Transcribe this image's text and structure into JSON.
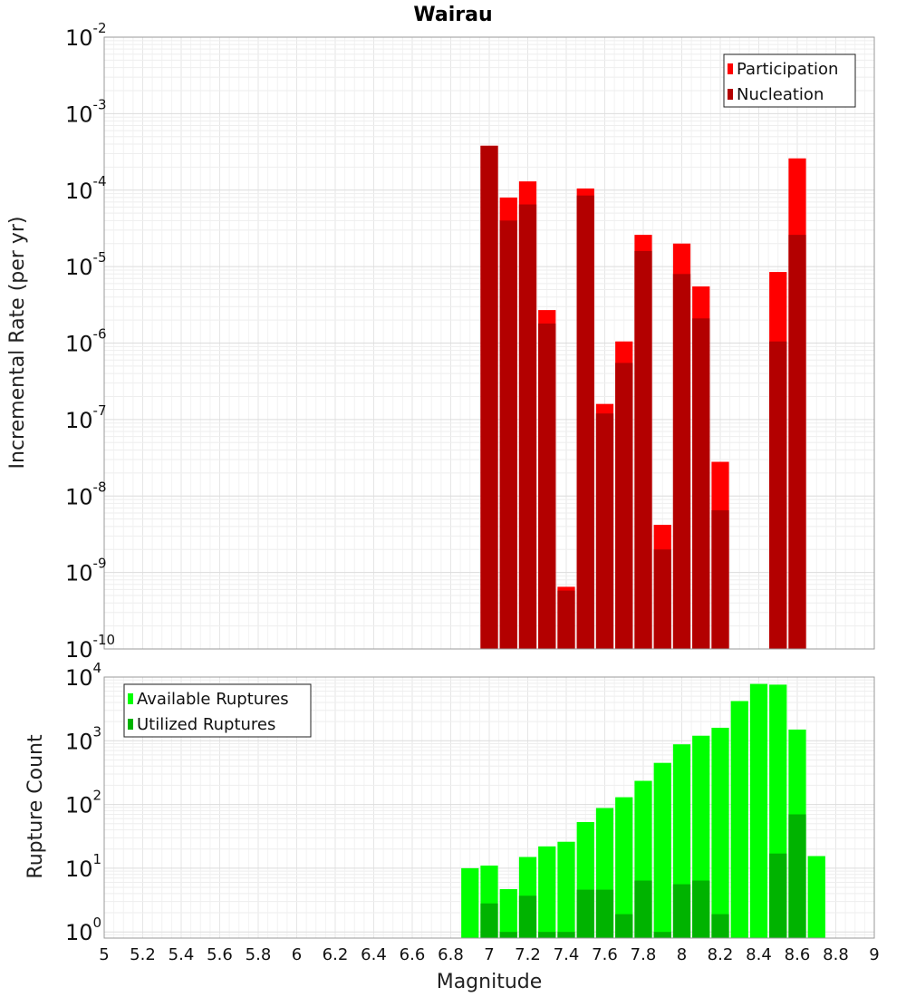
{
  "chart_data": [
    {
      "type": "bar",
      "title": "Wairau",
      "xlabel": "Magnitude",
      "ylabel": "Incremental Rate (per yr)",
      "yscale": "log",
      "xlim": [
        5,
        9
      ],
      "ylim": [
        1e-10,
        0.01
      ],
      "grid": true,
      "legend_position": "top-right",
      "bar_width": 0.1,
      "series": [
        {
          "name": "Participation",
          "color": "#ff0000",
          "x": [
            7.0,
            7.1,
            7.2,
            7.3,
            7.4,
            7.5,
            7.6,
            7.7,
            7.8,
            7.9,
            8.0,
            8.1,
            8.2,
            8.5,
            8.6
          ],
          "values": [
            0.00038,
            8e-05,
            0.00013,
            2.7e-06,
            6.5e-10,
            0.000105,
            1.6e-07,
            1.05e-06,
            2.6e-05,
            4.2e-09,
            2e-05,
            5.5e-06,
            2.8e-08,
            8.5e-06,
            0.00026
          ]
        },
        {
          "name": "Nucleation",
          "color": "#b30000",
          "x": [
            7.0,
            7.1,
            7.2,
            7.3,
            7.4,
            7.5,
            7.6,
            7.7,
            7.8,
            7.9,
            8.0,
            8.1,
            8.2,
            8.5,
            8.6
          ],
          "values": [
            0.00038,
            4e-05,
            6.5e-05,
            1.8e-06,
            5.8e-10,
            8.5e-05,
            1.2e-07,
            5.5e-07,
            1.6e-05,
            2e-09,
            8e-06,
            2.1e-06,
            6.5e-09,
            1.05e-06,
            2.6e-05
          ]
        }
      ]
    },
    {
      "type": "bar",
      "xlabel": "Magnitude",
      "ylabel": "Rupture Count",
      "yscale": "log",
      "xlim": [
        5,
        9
      ],
      "ylim": [
        0.8,
        10000.0
      ],
      "grid": true,
      "legend_position": "top-left",
      "bar_width": 0.1,
      "series": [
        {
          "name": "Available Ruptures",
          "color": "#00ff00",
          "x": [
            6.9,
            7.0,
            7.1,
            7.2,
            7.3,
            7.4,
            7.5,
            7.6,
            7.7,
            7.8,
            7.9,
            8.0,
            8.1,
            8.2,
            8.3,
            8.4,
            8.5,
            8.6,
            8.7
          ],
          "values": [
            10,
            11,
            4.7,
            15,
            22,
            26,
            53,
            88,
            130,
            235,
            450,
            880,
            1200,
            1600,
            4200,
            7800,
            7600,
            1500,
            15.5
          ]
        },
        {
          "name": "Utilized Ruptures",
          "color": "#00b300",
          "x": [
            7.0,
            7.1,
            7.2,
            7.3,
            7.4,
            7.5,
            7.6,
            7.7,
            7.8,
            7.9,
            8.0,
            8.1,
            8.2,
            8.5,
            8.6
          ],
          "values": [
            2.8,
            1,
            3.7,
            1,
            1,
            4.6,
            4.6,
            1.9,
            6.4,
            1,
            5.6,
            6.4,
            1.9,
            17,
            70
          ]
        }
      ]
    }
  ],
  "x_ticks": [
    "5",
    "5.2",
    "5.4",
    "5.6",
    "5.8",
    "6",
    "6.2",
    "6.4",
    "6.6",
    "6.8",
    "7",
    "7.2",
    "7.4",
    "7.6",
    "7.8",
    "8",
    "8.2",
    "8.4",
    "8.6",
    "8.8",
    "9"
  ],
  "top_y_ticks": [
    {
      "base": "10",
      "exp": "-10"
    },
    {
      "base": "10",
      "exp": "-9"
    },
    {
      "base": "10",
      "exp": "-8"
    },
    {
      "base": "10",
      "exp": "-7"
    },
    {
      "base": "10",
      "exp": "-6"
    },
    {
      "base": "10",
      "exp": "-5"
    },
    {
      "base": "10",
      "exp": "-4"
    },
    {
      "base": "10",
      "exp": "-3"
    },
    {
      "base": "10",
      "exp": "-2"
    }
  ],
  "bottom_y_ticks": [
    {
      "base": "10",
      "exp": "0"
    },
    {
      "base": "10",
      "exp": "1"
    },
    {
      "base": "10",
      "exp": "2"
    },
    {
      "base": "10",
      "exp": "3"
    },
    {
      "base": "10",
      "exp": "4"
    }
  ]
}
